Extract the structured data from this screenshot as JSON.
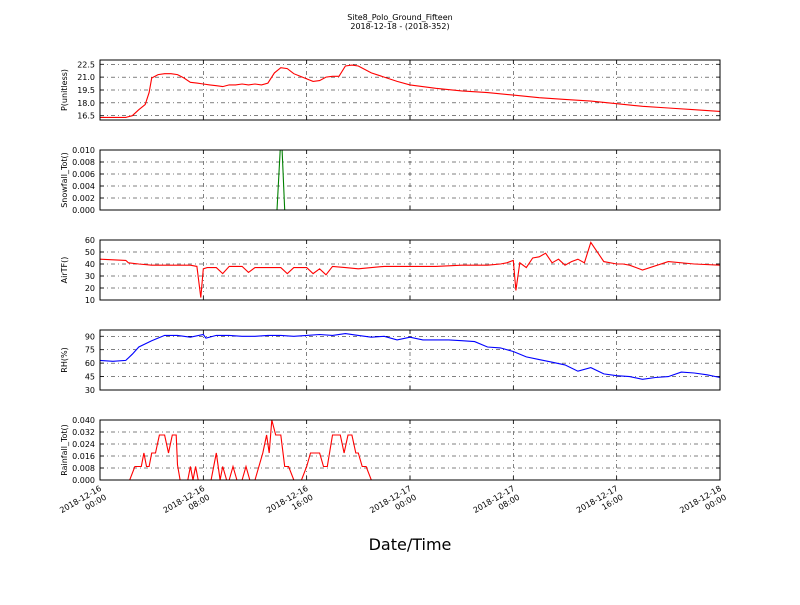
{
  "figure": {
    "title": "Site8_Polo_Ground_Fifteen",
    "subtitle": "2018-12-18 - (2018-352)",
    "xlabel": "Date/Time",
    "x_ticks": [
      "2018-12-16 00:00",
      "2018-12-16 08:00",
      "2018-12-16 16:00",
      "2018-12-17 00:00",
      "2018-12-17 08:00",
      "2018-12-17 16:00",
      "2018-12-18 00:00"
    ]
  },
  "chart_data": [
    {
      "type": "line",
      "ylabel": "P(unitless)",
      "xlim": [
        0,
        48
      ],
      "ylim": [
        16,
        23
      ],
      "yticks": [
        "16.5",
        "18.0",
        "19.5",
        "21.0",
        "22.5"
      ],
      "grid": true,
      "series": [
        {
          "color": "#ff0000",
          "x": [
            0,
            1,
            2,
            2.5,
            3,
            3.5,
            3.8,
            4,
            4.5,
            5,
            5.5,
            6,
            6.5,
            7,
            7.5,
            8,
            8.5,
            9,
            9.5,
            10,
            10.5,
            11,
            11.5,
            12,
            12.5,
            13,
            13.5,
            14,
            14.5,
            15,
            15.5,
            16,
            16.5,
            17,
            17.5,
            18,
            18.5,
            19,
            19.5,
            20,
            21,
            22,
            23,
            24,
            26,
            28,
            30,
            32,
            34,
            36,
            38,
            40,
            42,
            44,
            46,
            48
          ],
          "y": [
            16.3,
            16.3,
            16.3,
            16.5,
            17.2,
            17.8,
            19.2,
            20.9,
            21.3,
            21.4,
            21.4,
            21.3,
            20.9,
            20.4,
            20.3,
            20.2,
            20.1,
            20.0,
            19.9,
            20.1,
            20.1,
            20.2,
            20.1,
            20.2,
            20.1,
            20.3,
            21.5,
            22.1,
            22.0,
            21.4,
            21.1,
            20.8,
            20.5,
            20.6,
            21.0,
            21.1,
            21.1,
            22.3,
            22.4,
            22.3,
            21.5,
            21.0,
            20.5,
            20.1,
            19.7,
            19.4,
            19.2,
            18.9,
            18.6,
            18.4,
            18.2,
            17.9,
            17.6,
            17.4,
            17.2,
            17.0
          ]
        }
      ]
    },
    {
      "type": "line",
      "ylabel": "Snowfall_Tot()",
      "xlim": [
        0,
        48
      ],
      "ylim": [
        0,
        0.01
      ],
      "yticks": [
        "0.000",
        "0.002",
        "0.004",
        "0.006",
        "0.008",
        "0.010"
      ],
      "grid": true,
      "series": [
        {
          "color": "#008000",
          "x": [
            0,
            13.7,
            13.95,
            14.1,
            14.3,
            48
          ],
          "y": [
            0,
            0,
            0.01,
            0.01,
            0,
            0
          ]
        }
      ]
    },
    {
      "type": "line",
      "ylabel": "AirTF()",
      "xlim": [
        0,
        48
      ],
      "ylim": [
        10,
        60
      ],
      "yticks": [
        "10",
        "20",
        "30",
        "40",
        "50",
        "60"
      ],
      "grid": true,
      "series": [
        {
          "color": "#ff0000",
          "x": [
            0,
            1,
            2,
            2.2,
            3,
            4,
            5,
            6,
            7,
            7.5,
            7.8,
            8.0,
            8.3,
            9,
            9.5,
            10,
            11,
            11.5,
            12,
            12.5,
            13,
            14,
            14.5,
            15,
            16,
            16.5,
            17,
            17.5,
            18,
            19,
            20,
            22,
            24,
            26,
            28,
            30,
            31,
            31.5,
            32,
            32.2,
            32.5,
            33,
            33.5,
            34,
            34.5,
            35,
            35.5,
            36,
            36.5,
            37,
            37.5,
            38,
            39,
            40,
            40.5,
            41,
            42,
            44,
            46,
            48
          ],
          "y": [
            44,
            43.5,
            43,
            41,
            40,
            39,
            39,
            39,
            39,
            38,
            12,
            36,
            37,
            37,
            32,
            38,
            38,
            33,
            37,
            37,
            37,
            37,
            32,
            37,
            37,
            32,
            36,
            31,
            38,
            37,
            36,
            38,
            38,
            38,
            39,
            39,
            40,
            41,
            43,
            18,
            41,
            37,
            45,
            46,
            49,
            41,
            44,
            39,
            42,
            44,
            41,
            58,
            42,
            40,
            40,
            39,
            35,
            42,
            40,
            39
          ]
        }
      ]
    },
    {
      "type": "line",
      "ylabel": "RH(%)",
      "xlim": [
        0,
        48
      ],
      "ylim": [
        30,
        97
      ],
      "yticks": [
        "30",
        "45",
        "60",
        "75",
        "90"
      ],
      "grid": true,
      "series": [
        {
          "color": "#0000ff",
          "x": [
            0,
            1,
            2,
            2.5,
            3,
            4,
            5,
            6,
            7,
            8,
            8.2,
            9,
            10,
            11,
            12,
            13,
            14,
            15,
            16,
            17,
            18,
            19,
            20,
            21,
            22,
            23,
            24,
            25,
            26,
            27,
            28,
            29,
            30,
            31,
            32,
            33,
            34,
            35,
            36,
            37,
            38,
            39,
            40,
            41,
            42,
            43,
            44,
            45,
            46,
            47,
            48
          ],
          "y": [
            63,
            62,
            63,
            70,
            78,
            85,
            91,
            91,
            89,
            92,
            88,
            91,
            91,
            90,
            90,
            91,
            91,
            90,
            91,
            92,
            91,
            93,
            91,
            89,
            90,
            86,
            89,
            86,
            86,
            86,
            85,
            84,
            78,
            77,
            73,
            67,
            64,
            61,
            58,
            51,
            55,
            48,
            46,
            45,
            42,
            44,
            45,
            50,
            49,
            47,
            44
          ]
        }
      ]
    },
    {
      "type": "line",
      "ylabel": "Rainfall_Tot()",
      "xlim": [
        0,
        48
      ],
      "ylim": [
        0,
        0.04
      ],
      "yticks": [
        "0.000",
        "0.008",
        "0.016",
        "0.024",
        "0.032",
        "0.040"
      ],
      "grid": true,
      "series": [
        {
          "color": "#ff0000",
          "x": [
            0,
            2.3,
            2.7,
            3.0,
            3.2,
            3.4,
            3.6,
            3.8,
            4.0,
            4.3,
            4.6,
            5.0,
            5.3,
            5.6,
            5.9,
            6.0,
            6.2,
            6.5,
            6.8,
            7.0,
            7.2,
            7.4,
            7.6,
            7.8,
            8.0,
            8.6,
            9.0,
            9.3,
            9.5,
            9.8,
            10.0,
            10.3,
            10.6,
            11.0,
            11.3,
            11.6,
            12.0,
            12.3,
            12.6,
            12.9,
            13.1,
            13.3,
            13.6,
            14.0,
            14.3,
            14.6,
            15.0,
            15.3,
            15.6,
            16.0,
            16.3,
            16.6,
            17.0,
            17.3,
            17.6,
            18.0,
            18.3,
            18.6,
            18.9,
            19.2,
            19.5,
            19.8,
            20.0,
            20.3,
            20.6,
            21.0,
            22.0,
            30.0,
            48.0
          ],
          "y": [
            0,
            0,
            0.009,
            0.009,
            0.009,
            0.018,
            0.009,
            0.009,
            0.018,
            0.018,
            0.03,
            0.03,
            0.018,
            0.03,
            0.03,
            0.01,
            0,
            0,
            0,
            0.009,
            0,
            0.009,
            0,
            0,
            0,
            0,
            0.018,
            0,
            0.009,
            0,
            0,
            0.009,
            0,
            0,
            0.009,
            0,
            0,
            0.009,
            0.018,
            0.03,
            0.018,
            0.04,
            0.03,
            0.03,
            0.009,
            0.009,
            0,
            0,
            0,
            0.009,
            0.018,
            0.018,
            0.018,
            0.009,
            0.009,
            0.03,
            0.03,
            0.03,
            0.018,
            0.03,
            0.03,
            0.018,
            0.018,
            0.009,
            0.009,
            0,
            0,
            0,
            0
          ]
        }
      ]
    }
  ]
}
